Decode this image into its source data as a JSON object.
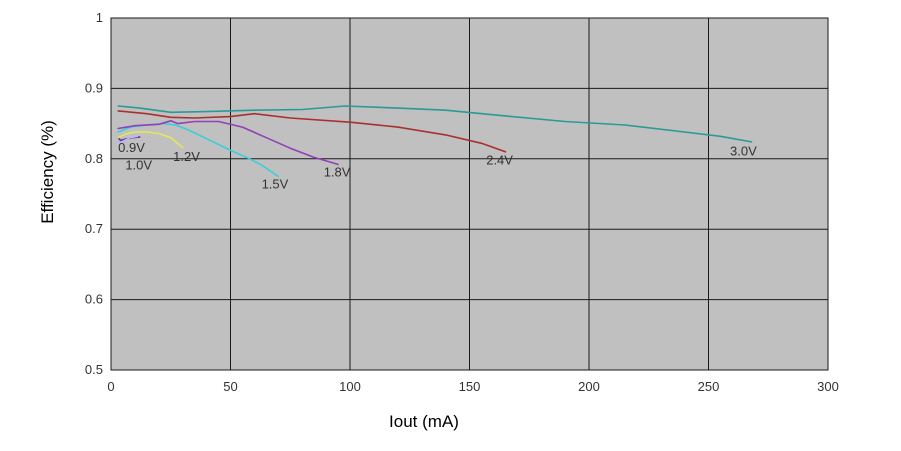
{
  "chart_data": {
    "type": "line",
    "title": "",
    "xlabel": "Iout (mA)",
    "ylabel": "Efficiency (%)",
    "xlim": [
      0,
      300
    ],
    "ylim": [
      0.5,
      1
    ],
    "xticks": [
      0,
      50,
      100,
      150,
      200,
      250,
      300
    ],
    "yticks": [
      0.5,
      0.6,
      0.7,
      0.8,
      0.9,
      1
    ],
    "xtick_labels": [
      "0",
      "50",
      "100",
      "150",
      "200",
      "250",
      "300"
    ],
    "ytick_labels": [
      "0.5",
      "0.6",
      "0.7",
      "0.8",
      "0.9",
      "1"
    ],
    "grid": true,
    "plot_background": "#c0c0c0",
    "grid_color": "#1a1a1a",
    "series": [
      {
        "name": "0.9V",
        "color": "#6a2ca0",
        "points": [
          [
            3,
            0.83
          ],
          [
            4,
            0.826
          ],
          [
            6,
            0.828
          ],
          [
            9,
            0.83
          ],
          [
            12,
            0.831
          ]
        ]
      },
      {
        "name": "1.0V",
        "color": "#b8b8ff",
        "points": [
          [
            3,
            0.822
          ],
          [
            5,
            0.825
          ],
          [
            8,
            0.83
          ],
          [
            11,
            0.832
          ]
        ]
      },
      {
        "name": "1.2V",
        "color": "#e6e65a",
        "points": [
          [
            3,
            0.83
          ],
          [
            6,
            0.835
          ],
          [
            10,
            0.838
          ],
          [
            15,
            0.838
          ],
          [
            20,
            0.836
          ],
          [
            25,
            0.83
          ],
          [
            30,
            0.816
          ]
        ]
      },
      {
        "name": "1.5V",
        "color": "#38d0d8",
        "points": [
          [
            3,
            0.838
          ],
          [
            8,
            0.845
          ],
          [
            15,
            0.848
          ],
          [
            22,
            0.85
          ],
          [
            27,
            0.848
          ],
          [
            33,
            0.84
          ],
          [
            41,
            0.827
          ],
          [
            50,
            0.812
          ],
          [
            58,
            0.8
          ],
          [
            63,
            0.791
          ],
          [
            70,
            0.775
          ]
        ]
      },
      {
        "name": "1.8V",
        "color": "#9040b8",
        "points": [
          [
            3,
            0.843
          ],
          [
            10,
            0.847
          ],
          [
            20,
            0.849
          ],
          [
            25,
            0.854
          ],
          [
            28,
            0.85
          ],
          [
            35,
            0.853
          ],
          [
            45,
            0.853
          ],
          [
            55,
            0.845
          ],
          [
            65,
            0.83
          ],
          [
            75,
            0.815
          ],
          [
            85,
            0.802
          ],
          [
            95,
            0.792
          ]
        ]
      },
      {
        "name": "2.4V",
        "color": "#a83030",
        "points": [
          [
            3,
            0.868
          ],
          [
            15,
            0.864
          ],
          [
            25,
            0.859
          ],
          [
            35,
            0.858
          ],
          [
            50,
            0.86
          ],
          [
            60,
            0.864
          ],
          [
            75,
            0.858
          ],
          [
            100,
            0.852
          ],
          [
            120,
            0.845
          ],
          [
            140,
            0.834
          ],
          [
            155,
            0.822
          ],
          [
            165,
            0.81
          ]
        ]
      },
      {
        "name": "3.0V",
        "color": "#2a9a94",
        "points": [
          [
            3,
            0.875
          ],
          [
            12,
            0.872
          ],
          [
            25,
            0.866
          ],
          [
            40,
            0.867
          ],
          [
            60,
            0.869
          ],
          [
            80,
            0.87
          ],
          [
            98,
            0.875
          ],
          [
            120,
            0.872
          ],
          [
            140,
            0.869
          ],
          [
            165,
            0.861
          ],
          [
            190,
            0.853
          ],
          [
            215,
            0.848
          ],
          [
            240,
            0.838
          ],
          [
            255,
            0.832
          ],
          [
            268,
            0.824
          ]
        ]
      }
    ],
    "series_labels": [
      {
        "text": "0.9V",
        "x": 3,
        "y": 0.81
      },
      {
        "text": "1.0V",
        "x": 6,
        "y": 0.785
      },
      {
        "text": "1.2V",
        "x": 26,
        "y": 0.797
      },
      {
        "text": "1.5V",
        "x": 63,
        "y": 0.758
      },
      {
        "text": "1.8V",
        "x": 89,
        "y": 0.775
      },
      {
        "text": "2.4V",
        "x": 157,
        "y": 0.792
      },
      {
        "text": "3.0V",
        "x": 259,
        "y": 0.805
      }
    ]
  }
}
